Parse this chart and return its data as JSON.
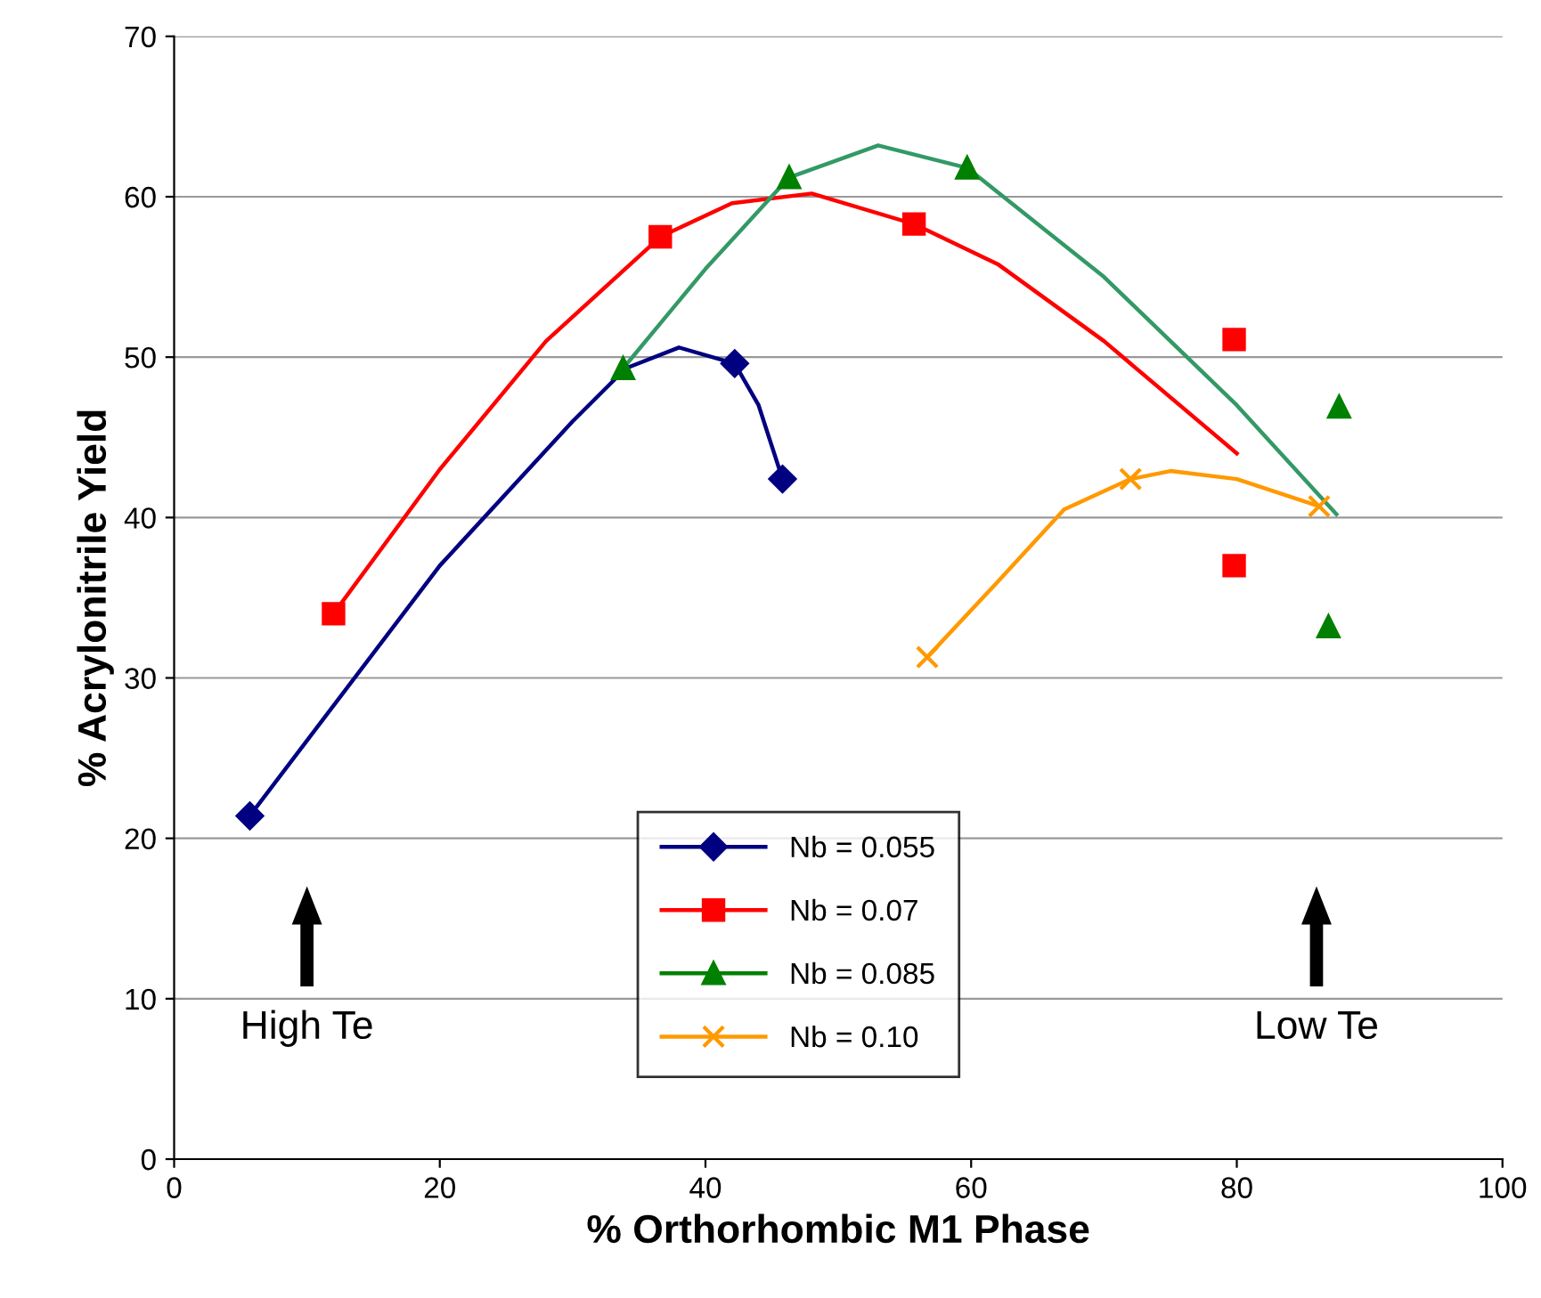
{
  "chart_data": {
    "type": "scatter",
    "xlabel": "% Orthorhombic M1 Phase",
    "ylabel": "% Acrylonitrile Yield",
    "xlim": [
      0,
      100
    ],
    "xticks": [
      0,
      20,
      40,
      60,
      80,
      100
    ],
    "ylim": [
      0,
      70
    ],
    "yticks": [
      0,
      10,
      20,
      30,
      40,
      50,
      60,
      70
    ],
    "grid": "y",
    "legend": "bottom",
    "series": [
      {
        "name": "Nb = 0.055",
        "color": "#000080",
        "marker": "diamond",
        "x": [
          5.7,
          34,
          42.2,
          45.8
        ],
        "values": [
          21.4,
          null,
          49.6,
          42.4
        ]
      },
      {
        "name": "Nb = 0.07",
        "color": "#ff0000",
        "marker": "square",
        "x": [
          12,
          36.6,
          55.7,
          79.8,
          79.8
        ],
        "values": [
          34,
          57.5,
          58.3,
          51.1,
          37
        ]
      },
      {
        "name": "Nb = 0.085",
        "color": "#008000",
        "marker": "triangle",
        "x": [
          33.8,
          46.3,
          59.7,
          87.7,
          86.9
        ],
        "values": [
          49.3,
          61.2,
          61.8,
          46.9,
          33.2
        ]
      },
      {
        "name": "Nb = 0.10",
        "color": "#ff9900",
        "marker": "cross",
        "x": [
          56.7,
          72,
          86.2
        ],
        "values": [
          31.3,
          42.4,
          40.7
        ]
      },
      {
        "type": "line",
        "color": "#000080",
        "x": [
          5.7,
          20,
          30,
          34,
          38,
          42.2,
          44,
          45.8
        ],
        "values": [
          21.4,
          37,
          46,
          49.3,
          50.6,
          49.6,
          47,
          42.4
        ]
      },
      {
        "type": "line",
        "color": "#ff0000",
        "x": [
          12,
          20,
          28,
          36.6,
          42,
          48,
          55.7,
          62,
          70,
          80
        ],
        "values": [
          34,
          43,
          51,
          57.5,
          59.6,
          60.2,
          58.3,
          55.8,
          51,
          44
        ]
      },
      {
        "type": "line",
        "color": "#339966",
        "x": [
          33.8,
          40,
          46.3,
          53,
          59.7,
          70,
          80,
          87.5
        ],
        "values": [
          49.3,
          55.5,
          61.2,
          63.2,
          61.8,
          55,
          47,
          40.2
        ]
      },
      {
        "type": "line",
        "color": "#ff9900",
        "x": [
          56.7,
          62,
          67,
          72,
          75,
          80,
          86.2
        ],
        "values": [
          31.3,
          36,
          40.5,
          42.4,
          42.9,
          42.4,
          40.7
        ]
      }
    ],
    "annotations": [
      "High Te",
      "Low Te"
    ]
  }
}
